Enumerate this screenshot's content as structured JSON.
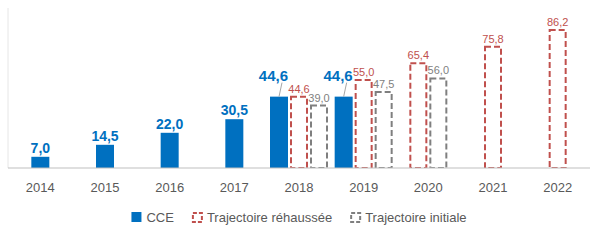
{
  "chart_data": {
    "type": "bar",
    "categories": [
      "2014",
      "2015",
      "2016",
      "2017",
      "2018",
      "2019",
      "2020",
      "2021",
      "2022"
    ],
    "series": [
      {
        "name": "CCE",
        "color": "#0070c0",
        "line_style": "solid",
        "values": [
          7.0,
          14.5,
          22.0,
          30.5,
          44.6,
          44.6,
          null,
          null,
          null
        ],
        "value_labels": [
          "7,0",
          "14,5",
          "22,0",
          "30,5",
          "44,6",
          "44,6",
          null,
          null,
          null
        ]
      },
      {
        "name": "Trajectoire réhaussée",
        "color": "#c0504d",
        "line_style": "dashed",
        "values": [
          null,
          null,
          null,
          null,
          44.6,
          55.0,
          65.4,
          75.8,
          86.2
        ],
        "value_labels": [
          null,
          null,
          null,
          null,
          "44,6",
          "55,0",
          "65,4",
          "75,8",
          "86,2"
        ]
      },
      {
        "name": "Trajectoire initiale",
        "color": "#7f7f7f",
        "line_style": "dashed",
        "values": [
          null,
          null,
          null,
          null,
          39.0,
          47.5,
          56.0,
          null,
          null
        ],
        "value_labels": [
          null,
          null,
          null,
          null,
          "39,0",
          "47,5",
          "56,0",
          null,
          null
        ]
      }
    ],
    "ylim": [
      0,
      100
    ],
    "grid": false,
    "data_labels": true,
    "legend": "bottom",
    "tick_labels": "x"
  }
}
